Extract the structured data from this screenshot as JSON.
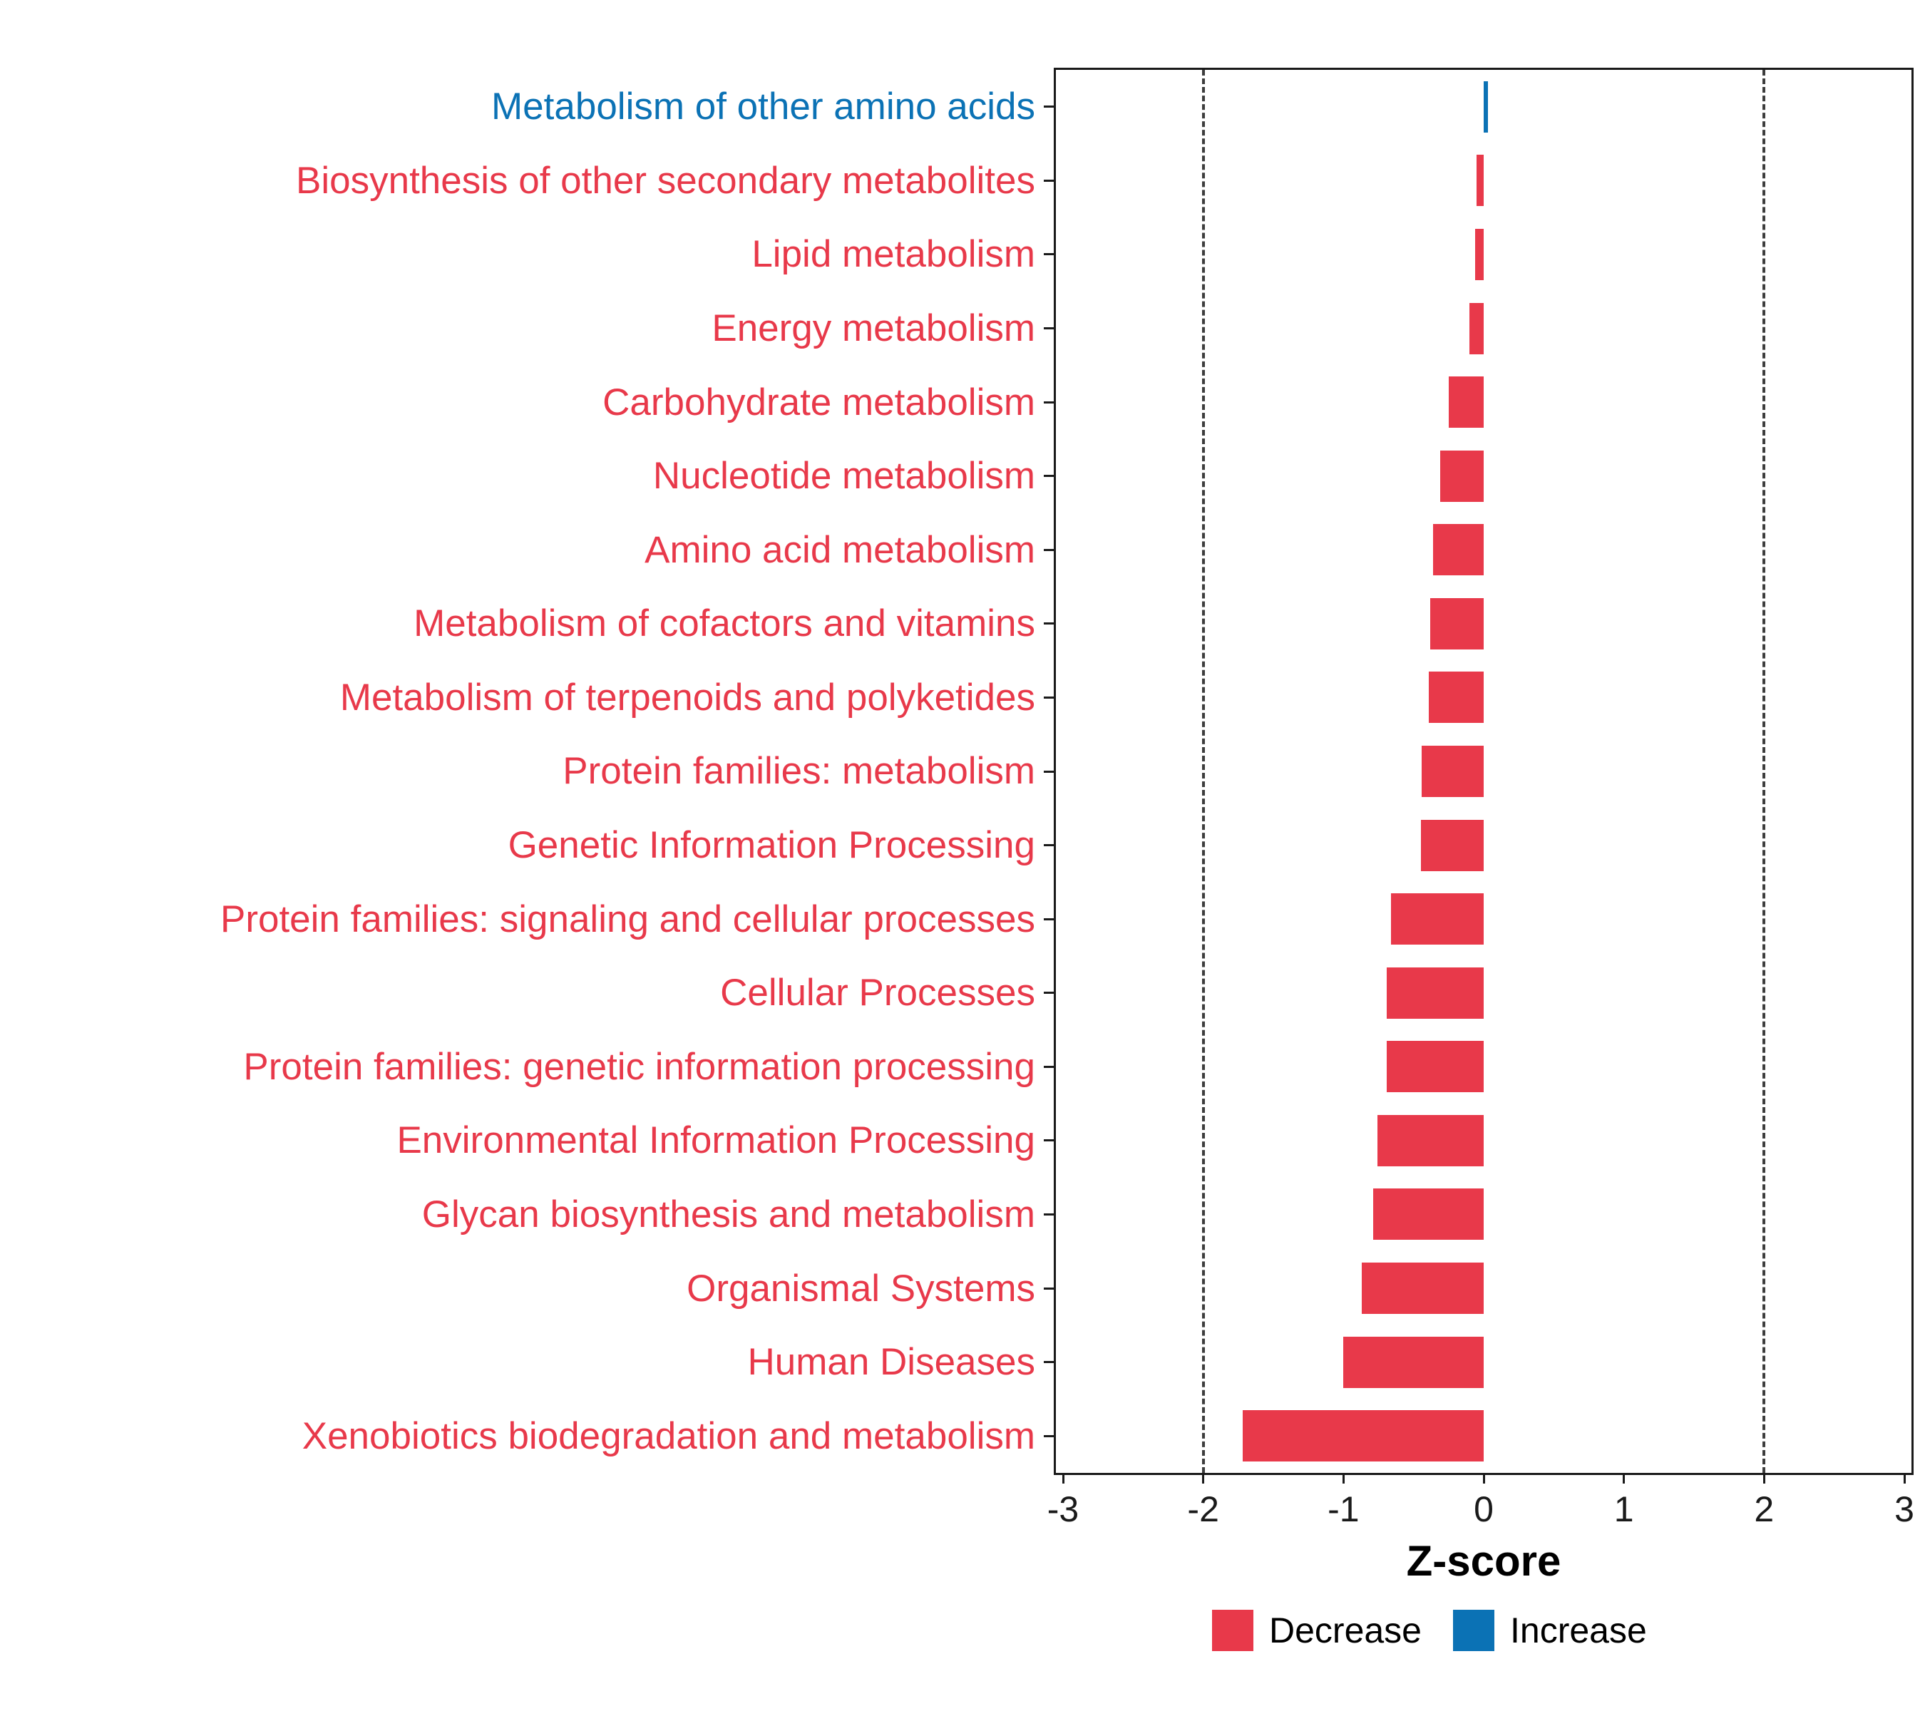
{
  "chart_data": {
    "type": "bar",
    "orientation": "horizontal",
    "title": "",
    "xlabel": "Z-score",
    "ylabel": "",
    "xlim": [
      -3,
      3
    ],
    "x_tick_values": [
      -3,
      -2,
      -1,
      0,
      1,
      2,
      3
    ],
    "x_tick_labels": [
      "-3",
      "-2",
      "-1",
      "0",
      "1",
      "2",
      "3"
    ],
    "reference_lines": [
      -2,
      2
    ],
    "grid": false,
    "legend_position": "bottom-right",
    "series": [
      {
        "category": "Metabolism of other amino acids",
        "value": 0.03,
        "group": "Increase"
      },
      {
        "category": "Biosynthesis of other secondary metabolites",
        "value": -0.05,
        "group": "Decrease"
      },
      {
        "category": "Lipid metabolism",
        "value": -0.06,
        "group": "Decrease"
      },
      {
        "category": "Energy metabolism",
        "value": -0.1,
        "group": "Decrease"
      },
      {
        "category": "Carbohydrate metabolism",
        "value": -0.25,
        "group": "Decrease"
      },
      {
        "category": "Nucleotide metabolism",
        "value": -0.31,
        "group": "Decrease"
      },
      {
        "category": "Amino acid metabolism",
        "value": -0.36,
        "group": "Decrease"
      },
      {
        "category": "Metabolism of cofactors and vitamins",
        "value": -0.38,
        "group": "Decrease"
      },
      {
        "category": "Metabolism of terpenoids and polyketides",
        "value": -0.39,
        "group": "Decrease"
      },
      {
        "category": "Protein families: metabolism",
        "value": -0.44,
        "group": "Decrease"
      },
      {
        "category": "Genetic Information Processing",
        "value": -0.45,
        "group": "Decrease"
      },
      {
        "category": "Protein families: signaling and cellular processes",
        "value": -0.66,
        "group": "Decrease"
      },
      {
        "category": "Cellular Processes",
        "value": -0.69,
        "group": "Decrease"
      },
      {
        "category": "Protein families: genetic information processing",
        "value": -0.69,
        "group": "Decrease"
      },
      {
        "category": "Environmental Information Processing",
        "value": -0.76,
        "group": "Decrease"
      },
      {
        "category": "Glycan biosynthesis and metabolism",
        "value": -0.79,
        "group": "Decrease"
      },
      {
        "category": "Organismal Systems",
        "value": -0.87,
        "group": "Decrease"
      },
      {
        "category": "Human Diseases",
        "value": -1.0,
        "group": "Decrease"
      },
      {
        "category": "Xenobiotics biodegradation and metabolism",
        "value": -1.72,
        "group": "Decrease"
      }
    ],
    "colors": {
      "Decrease": "#E8394A",
      "Increase": "#0B72B5"
    },
    "legend": [
      {
        "label": "Decrease",
        "color": "#E8394A"
      },
      {
        "label": "Increase",
        "color": "#0B72B5"
      }
    ],
    "style": {
      "panel_border_color": "#1a1a1a",
      "reference_line_color": "#3d3d3d",
      "background": "#FFFFFF"
    }
  }
}
